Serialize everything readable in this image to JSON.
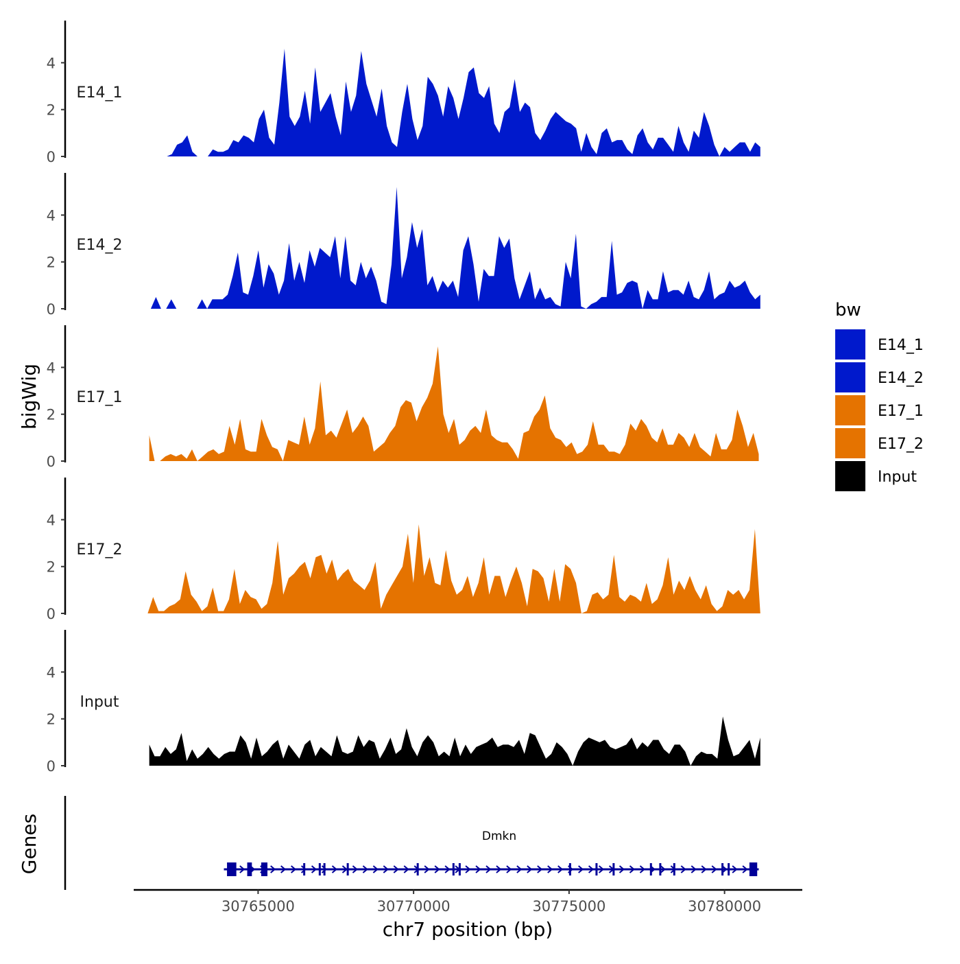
{
  "chart_data": {
    "type": "area",
    "x_axis": {
      "title": "chr7 position (bp)",
      "range": [
        30761000,
        30782500
      ],
      "ticks": [
        30765000,
        30770000,
        30775000,
        30780000
      ],
      "tick_labels": [
        "30765000",
        "30770000",
        "30775000",
        "30780000"
      ]
    },
    "y_axis": {
      "title": "bigWig",
      "range": [
        0,
        5.8
      ],
      "ticks": [
        0,
        2,
        4
      ],
      "tick_labels": [
        "0",
        "2",
        "4"
      ]
    },
    "legend": {
      "title": "bw",
      "position": "right",
      "entries": [
        {
          "label": "E14_1",
          "color": "#0019CC"
        },
        {
          "label": "E14_2",
          "color": "#0019CC"
        },
        {
          "label": "E17_1",
          "color": "#E57300"
        },
        {
          "label": "E17_2",
          "color": "#E57300"
        },
        {
          "label": "Input",
          "color": "#000000"
        }
      ]
    },
    "series": [
      {
        "name": "E14_1",
        "color": "#0019CC",
        "x_start": 30761900,
        "x_end": 30781150,
        "values": [
          0.0,
          0.0,
          0.1,
          0.5,
          0.6,
          0.9,
          0.2,
          0.0,
          0.0,
          0.0,
          0.3,
          0.2,
          0.2,
          0.3,
          0.7,
          0.6,
          0.9,
          0.8,
          0.6,
          1.6,
          2.0,
          0.8,
          0.5,
          2.3,
          4.6,
          1.7,
          1.3,
          1.7,
          2.8,
          1.4,
          3.8,
          1.9,
          2.3,
          2.7,
          1.7,
          0.9,
          3.2,
          1.9,
          2.6,
          4.5,
          3.1,
          2.4,
          1.7,
          2.9,
          1.3,
          0.6,
          0.4,
          1.9,
          3.1,
          1.6,
          0.7,
          1.3,
          3.4,
          3.1,
          2.6,
          1.7,
          3.0,
          2.5,
          1.6,
          2.5,
          3.6,
          3.8,
          2.7,
          2.5,
          3.0,
          1.4,
          1.0,
          1.9,
          2.1,
          3.3,
          1.9,
          2.3,
          2.1,
          1.0,
          0.7,
          1.1,
          1.6,
          1.9,
          1.7,
          1.5,
          1.4,
          1.2,
          0.2,
          1.0,
          0.4,
          0.1,
          1.0,
          1.2,
          0.6,
          0.7,
          0.7,
          0.3,
          0.1,
          0.9,
          1.2,
          0.6,
          0.3,
          0.8,
          0.8,
          0.5,
          0.2,
          1.3,
          0.6,
          0.2,
          1.1,
          0.8,
          1.9,
          1.3,
          0.5,
          0.0,
          0.4,
          0.2,
          0.4,
          0.6,
          0.6,
          0.2,
          0.6,
          0.4
        ]
      },
      {
        "name": "E14_2",
        "color": "#0019CC",
        "x_start": 30761550,
        "x_end": 30781150,
        "values": [
          0.0,
          0.5,
          0.0,
          0.0,
          0.4,
          0.0,
          0.0,
          0.0,
          0.0,
          0.0,
          0.4,
          0.0,
          0.4,
          0.4,
          0.4,
          0.6,
          1.4,
          2.4,
          0.7,
          0.6,
          1.4,
          2.5,
          0.9,
          1.9,
          1.5,
          0.6,
          1.2,
          2.8,
          1.2,
          2.0,
          1.1,
          2.5,
          1.8,
          2.6,
          2.4,
          2.2,
          3.1,
          1.3,
          3.1,
          1.2,
          1.0,
          2.0,
          1.3,
          1.8,
          1.2,
          0.3,
          0.2,
          1.9,
          5.2,
          1.3,
          2.2,
          3.7,
          2.6,
          3.4,
          1.0,
          1.4,
          0.7,
          1.2,
          0.9,
          1.2,
          0.5,
          2.5,
          3.1,
          1.9,
          0.3,
          1.7,
          1.4,
          1.4,
          3.1,
          2.6,
          3.0,
          1.3,
          0.4,
          1.0,
          1.6,
          0.4,
          0.9,
          0.4,
          0.5,
          0.2,
          0.1,
          2.0,
          1.3,
          3.2,
          0.1,
          0.0,
          0.2,
          0.3,
          0.5,
          0.5,
          2.9,
          0.6,
          0.7,
          1.1,
          1.2,
          1.1,
          0.0,
          0.8,
          0.4,
          0.4,
          1.6,
          0.7,
          0.8,
          0.8,
          0.6,
          1.2,
          0.5,
          0.4,
          0.8,
          1.6,
          0.4,
          0.6,
          0.7,
          1.2,
          0.9,
          1.0,
          1.2,
          0.7,
          0.4,
          0.6
        ]
      },
      {
        "name": "E17_1",
        "color": "#E57300",
        "x_start": 30761500,
        "x_end": 30781100,
        "values": [
          1.1,
          0.0,
          0.0,
          0.2,
          0.3,
          0.2,
          0.3,
          0.1,
          0.5,
          0.0,
          0.2,
          0.4,
          0.5,
          0.3,
          0.4,
          1.5,
          0.7,
          1.8,
          0.5,
          0.4,
          0.4,
          1.8,
          1.1,
          0.6,
          0.5,
          0.0,
          0.9,
          0.8,
          0.7,
          1.9,
          0.7,
          1.4,
          3.4,
          1.1,
          1.3,
          1.0,
          1.6,
          2.2,
          1.2,
          1.5,
          1.9,
          1.5,
          0.4,
          0.6,
          0.8,
          1.2,
          1.5,
          2.3,
          2.6,
          2.5,
          1.7,
          2.3,
          2.7,
          3.3,
          4.9,
          2.0,
          1.2,
          1.8,
          0.7,
          0.9,
          1.3,
          1.5,
          1.2,
          2.2,
          1.1,
          0.9,
          0.8,
          0.8,
          0.5,
          0.1,
          1.2,
          1.3,
          1.9,
          2.2,
          2.8,
          1.4,
          1.0,
          0.9,
          0.6,
          0.8,
          0.3,
          0.4,
          0.7,
          1.7,
          0.7,
          0.7,
          0.4,
          0.4,
          0.3,
          0.7,
          1.6,
          1.3,
          1.8,
          1.5,
          1.0,
          0.8,
          1.4,
          0.7,
          0.7,
          1.2,
          1.0,
          0.6,
          1.2,
          0.6,
          0.4,
          0.2,
          1.2,
          0.5,
          0.5,
          0.9,
          2.2,
          1.5,
          0.6,
          1.2,
          0.3
        ]
      },
      {
        "name": "E17_2",
        "color": "#E57300",
        "x_start": 30761450,
        "x_end": 30781150,
        "values": [
          0.0,
          0.7,
          0.1,
          0.1,
          0.3,
          0.4,
          0.6,
          1.8,
          0.8,
          0.5,
          0.1,
          0.3,
          1.1,
          0.1,
          0.1,
          0.6,
          1.9,
          0.4,
          1.0,
          0.7,
          0.6,
          0.2,
          0.4,
          1.3,
          3.1,
          0.8,
          1.5,
          1.7,
          2.0,
          2.2,
          1.5,
          2.4,
          2.5,
          1.7,
          2.3,
          1.4,
          1.7,
          1.9,
          1.4,
          1.2,
          1.0,
          1.4,
          2.2,
          0.2,
          0.8,
          1.2,
          1.6,
          2.0,
          3.4,
          1.3,
          3.8,
          1.6,
          2.4,
          1.3,
          1.2,
          2.7,
          1.4,
          0.8,
          1.0,
          1.6,
          0.7,
          1.3,
          2.4,
          0.8,
          1.6,
          1.6,
          0.7,
          1.4,
          2.0,
          1.3,
          0.3,
          1.9,
          1.8,
          1.5,
          0.5,
          1.9,
          0.5,
          2.1,
          1.9,
          1.3,
          0.0,
          0.1,
          0.8,
          0.9,
          0.6,
          0.8,
          2.5,
          0.7,
          0.5,
          0.8,
          0.7,
          0.5,
          1.3,
          0.4,
          0.6,
          1.2,
          2.4,
          0.8,
          1.4,
          1.0,
          1.6,
          1.0,
          0.6,
          1.2,
          0.4,
          0.1,
          0.3,
          1.0,
          0.8,
          1.0,
          0.6,
          1.0,
          3.6,
          0.0
        ]
      },
      {
        "name": "Input",
        "color": "#000000",
        "x_start": 30761500,
        "x_end": 30781150,
        "values": [
          0.9,
          0.4,
          0.4,
          0.8,
          0.5,
          0.7,
          1.4,
          0.2,
          0.7,
          0.3,
          0.5,
          0.8,
          0.5,
          0.3,
          0.5,
          0.6,
          0.6,
          1.3,
          1.0,
          0.3,
          1.2,
          0.4,
          0.6,
          0.9,
          1.1,
          0.3,
          0.9,
          0.6,
          0.3,
          0.9,
          1.1,
          0.4,
          0.8,
          0.6,
          0.4,
          1.3,
          0.6,
          0.5,
          0.6,
          1.3,
          0.8,
          1.1,
          1.0,
          0.3,
          0.7,
          1.2,
          0.5,
          0.7,
          1.6,
          0.8,
          0.4,
          1.0,
          1.3,
          1.0,
          0.4,
          0.6,
          0.4,
          1.2,
          0.4,
          0.9,
          0.5,
          0.8,
          0.9,
          1.0,
          1.2,
          0.8,
          0.9,
          0.9,
          0.8,
          1.1,
          0.5,
          1.4,
          1.3,
          0.8,
          0.3,
          0.5,
          1.0,
          0.8,
          0.5,
          0.0,
          0.6,
          1.0,
          1.2,
          1.1,
          1.0,
          1.1,
          0.8,
          0.7,
          0.8,
          0.9,
          1.2,
          0.7,
          1.0,
          0.8,
          1.1,
          1.1,
          0.7,
          0.5,
          0.9,
          0.9,
          0.6,
          0.0,
          0.4,
          0.6,
          0.5,
          0.5,
          0.3,
          2.1,
          1.1,
          0.4,
          0.5,
          0.8,
          1.1,
          0.3,
          1.2
        ]
      }
    ],
    "genes_track": {
      "title": "Genes",
      "gene_name": "Dmkn",
      "strand": "+",
      "x_start": 30763900,
      "x_end": 30781100,
      "exons": [
        [
          30764000,
          30764300
        ],
        [
          30764650,
          30764800
        ],
        [
          30765100,
          30765300
        ],
        [
          30766450,
          30766480
        ],
        [
          30766950,
          30766980
        ],
        [
          30767100,
          30767130
        ],
        [
          30767850,
          30767880
        ],
        [
          30770100,
          30770130
        ],
        [
          30771250,
          30771280
        ],
        [
          30771450,
          30771480
        ],
        [
          30775000,
          30775030
        ],
        [
          30775850,
          30775880
        ],
        [
          30776400,
          30776430
        ],
        [
          30777600,
          30777630
        ],
        [
          30777900,
          30777930
        ],
        [
          30778350,
          30778380
        ],
        [
          30779900,
          30779930
        ],
        [
          30780100,
          30780130
        ],
        [
          30780800,
          30781050
        ]
      ]
    }
  }
}
